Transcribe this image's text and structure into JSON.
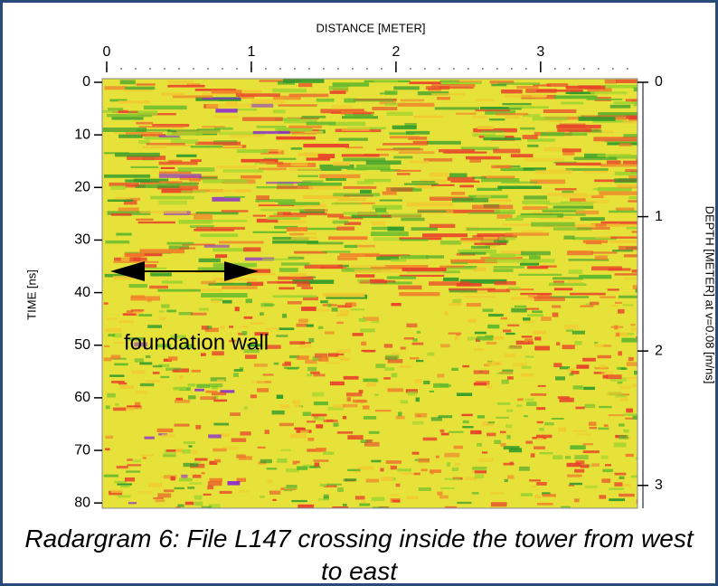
{
  "chart_data": {
    "type": "radargram",
    "x_label": "DISTANCE [METER]",
    "y_label": "TIME [ns]",
    "y2_label": "DEPTH [METER] at v=0.08 [m/ns]",
    "xlim": [
      0,
      3.67
    ],
    "xticks": [
      0,
      1,
      2,
      3
    ],
    "ylim": [
      0,
      81
    ],
    "yticks": [
      0,
      10,
      20,
      30,
      40,
      50,
      60,
      70,
      80
    ],
    "y2lim": [
      0,
      3.17
    ],
    "y2ticks": [
      0,
      1,
      2,
      3
    ],
    "annotation": "foundation wall"
  },
  "caption": "Radargram 6: File L147 crossing inside the tower from west to east"
}
